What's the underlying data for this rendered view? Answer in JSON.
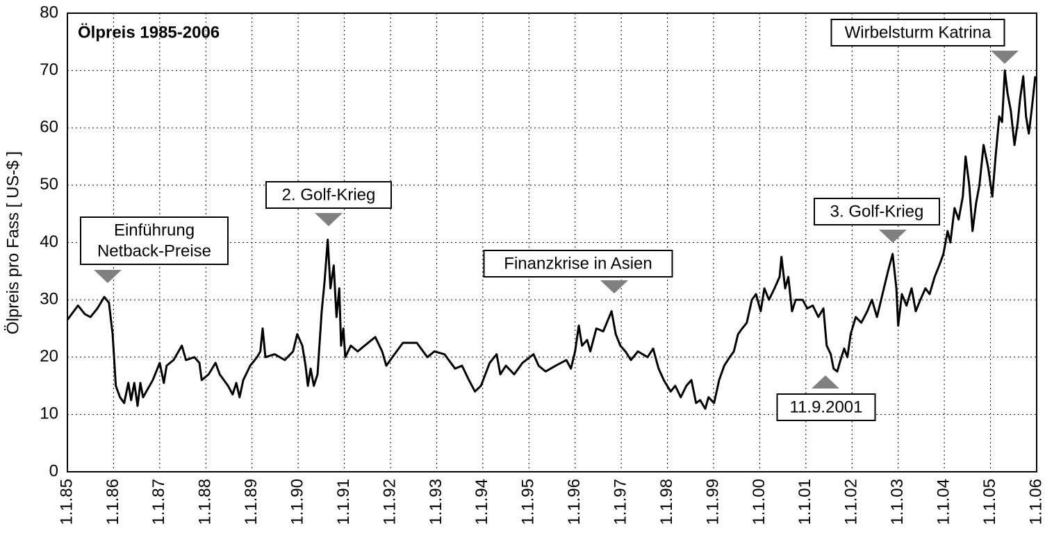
{
  "chart_data": {
    "type": "line",
    "title": "Ölpreis 1985-2006",
    "y_label": "Ölpreis pro Fass [ US-$ ]",
    "grid": true,
    "xlim": [
      1985,
      2006
    ],
    "ylim": [
      0,
      80
    ],
    "xticks": [
      {
        "value": 1985,
        "label": "1.1.85"
      },
      {
        "value": 1986,
        "label": "1.1.86"
      },
      {
        "value": 1987,
        "label": "1.1.87"
      },
      {
        "value": 1988,
        "label": "1.1.88"
      },
      {
        "value": 1989,
        "label": "1.1.89"
      },
      {
        "value": 1990,
        "label": "1.1.90"
      },
      {
        "value": 1991,
        "label": "1.1.91"
      },
      {
        "value": 1992,
        "label": "1.1.92"
      },
      {
        "value": 1993,
        "label": "1.1.93"
      },
      {
        "value": 1994,
        "label": "1.1.94"
      },
      {
        "value": 1995,
        "label": "1.1.95"
      },
      {
        "value": 1996,
        "label": "1.1.96"
      },
      {
        "value": 1997,
        "label": "1.1.97"
      },
      {
        "value": 1998,
        "label": "1.1.98"
      },
      {
        "value": 1999,
        "label": "1.1.99"
      },
      {
        "value": 2000,
        "label": "1.1.00"
      },
      {
        "value": 2001,
        "label": "1.1.01"
      },
      {
        "value": 2002,
        "label": "1.1.02"
      },
      {
        "value": 2003,
        "label": "1.1.03"
      },
      {
        "value": 2004,
        "label": "1.1.04"
      },
      {
        "value": 2005,
        "label": "1.1.05"
      },
      {
        "value": 2006,
        "label": "1.1.06"
      }
    ],
    "yticks": [
      0,
      10,
      20,
      30,
      40,
      50,
      60,
      70,
      80
    ],
    "annotations": [
      {
        "lines": [
          "Einführung",
          "Netback-Preise"
        ]
      },
      {
        "lines": [
          "2. Golf-Krieg"
        ]
      },
      {
        "lines": [
          "Finanzkrise in Asien"
        ]
      },
      {
        "lines": [
          "11.9.2001"
        ]
      },
      {
        "lines": [
          "3. Golf-Krieg"
        ]
      },
      {
        "lines": [
          "Wirbelsturm Katrina"
        ]
      }
    ],
    "x": [
      1985.0,
      1985.23,
      1985.38,
      1985.5,
      1985.65,
      1985.8,
      1985.9,
      1985.98,
      1986.05,
      1986.14,
      1986.23,
      1986.32,
      1986.38,
      1986.45,
      1986.52,
      1986.58,
      1986.64,
      1986.85,
      1987.0,
      1987.09,
      1987.15,
      1987.3,
      1987.48,
      1987.57,
      1987.75,
      1987.86,
      1987.91,
      1988.06,
      1988.21,
      1988.3,
      1988.48,
      1988.58,
      1988.66,
      1988.73,
      1988.81,
      1988.96,
      1989.11,
      1989.18,
      1989.23,
      1989.29,
      1989.49,
      1989.71,
      1989.89,
      1989.98,
      1990.09,
      1990.16,
      1990.21,
      1990.27,
      1990.34,
      1990.42,
      1990.51,
      1990.57,
      1990.64,
      1990.7,
      1990.77,
      1990.83,
      1990.89,
      1990.93,
      1990.98,
      1991.02,
      1991.14,
      1991.29,
      1991.44,
      1991.67,
      1991.82,
      1991.91,
      1992.04,
      1992.27,
      1992.57,
      1992.8,
      1992.95,
      1993.17,
      1993.4,
      1993.55,
      1993.7,
      1993.83,
      1993.96,
      1994.15,
      1994.3,
      1994.38,
      1994.5,
      1994.68,
      1994.86,
      1995.1,
      1995.21,
      1995.36,
      1995.58,
      1995.81,
      1995.91,
      1996.0,
      1996.08,
      1996.15,
      1996.26,
      1996.33,
      1996.46,
      1996.61,
      1996.79,
      1996.88,
      1996.98,
      1997.09,
      1997.21,
      1997.36,
      1997.57,
      1997.69,
      1997.81,
      1997.92,
      1998.07,
      1998.17,
      1998.29,
      1998.41,
      1998.52,
      1998.62,
      1998.71,
      1998.82,
      1998.89,
      1999.01,
      1999.12,
      1999.23,
      1999.35,
      1999.44,
      1999.53,
      1999.62,
      1999.72,
      1999.83,
      1999.92,
      2000.02,
      2000.1,
      2000.2,
      2000.32,
      2000.43,
      2000.47,
      2000.55,
      2000.62,
      2000.7,
      2000.78,
      2000.93,
      2001.03,
      2001.15,
      2001.27,
      2001.38,
      2001.45,
      2001.54,
      2001.6,
      2001.68,
      2001.75,
      2001.83,
      2001.9,
      2001.97,
      2002.08,
      2002.2,
      2002.33,
      2002.43,
      2002.54,
      2002.66,
      2002.78,
      2002.88,
      2002.96,
      2003.0,
      2003.08,
      2003.18,
      2003.29,
      2003.38,
      2003.48,
      2003.59,
      2003.68,
      2003.79,
      2003.89,
      2003.98,
      2004.07,
      2004.13,
      2004.22,
      2004.31,
      2004.4,
      2004.46,
      2004.54,
      2004.61,
      2004.69,
      2004.76,
      2004.85,
      2004.95,
      2005.04,
      2005.11,
      2005.19,
      2005.25,
      2005.31,
      2005.37,
      2005.44,
      2005.52,
      2005.59,
      2005.64,
      2005.71,
      2005.77,
      2005.83,
      2005.89,
      2005.97
    ],
    "series": [
      {
        "name": "Ölpreis",
        "color": "#000000",
        "values": [
          26.5,
          29,
          27.5,
          27,
          28.5,
          30.5,
          29.5,
          24,
          15,
          13,
          12,
          15.5,
          12.5,
          15.5,
          11.5,
          15.5,
          13,
          16,
          19,
          15.5,
          18.5,
          19.5,
          22,
          19.5,
          20,
          19,
          16,
          17,
          19,
          17,
          15,
          13.5,
          15.5,
          13,
          16,
          18.5,
          20,
          21,
          25,
          20,
          20.5,
          19.5,
          21,
          24,
          22,
          18.5,
          15,
          18,
          15,
          17,
          28,
          33,
          40.5,
          32,
          36,
          27,
          32,
          22,
          25,
          20,
          22,
          21,
          22,
          23.5,
          21,
          18.5,
          20,
          22.5,
          22.5,
          20,
          21,
          20.5,
          18,
          18.5,
          16,
          14,
          15,
          19,
          20.5,
          17,
          18.5,
          17,
          19,
          20.5,
          18.5,
          17.5,
          18.5,
          19.5,
          18,
          21,
          25.5,
          22,
          23,
          21,
          25,
          24.5,
          28,
          24,
          22,
          21,
          19.5,
          21,
          20,
          21.5,
          18,
          16,
          14,
          15,
          13,
          15,
          16,
          12,
          12.5,
          11,
          13,
          12,
          16,
          18.5,
          20,
          21,
          24,
          25,
          26,
          30,
          31,
          28,
          32,
          30,
          32,
          34,
          37.5,
          32,
          34,
          28,
          30,
          30,
          28.5,
          29,
          27,
          28.5,
          22,
          20.5,
          18,
          17.5,
          19.5,
          21.5,
          20,
          24,
          27,
          26,
          28,
          30,
          27,
          31,
          35,
          38,
          32,
          25.5,
          31,
          29,
          32,
          28,
          30,
          32,
          31,
          34,
          36,
          38,
          42,
          40,
          46,
          44,
          48,
          55,
          50,
          42,
          47,
          50,
          57,
          53,
          48,
          55,
          62,
          61,
          70,
          66,
          63,
          57,
          61,
          65,
          69,
          62,
          59,
          63,
          69
        ]
      }
    ]
  }
}
